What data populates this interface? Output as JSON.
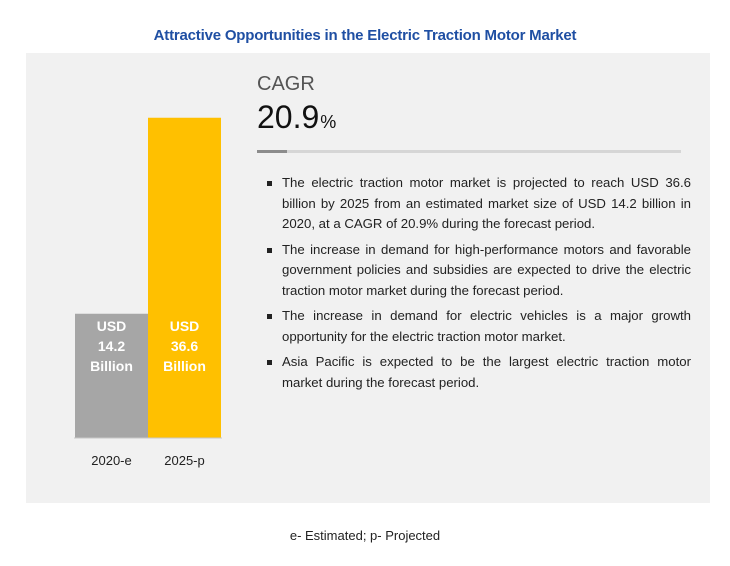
{
  "title": "Attractive Opportunities in the Electric Traction Motor Market",
  "cagr": {
    "label": "CAGR",
    "value": "20.9",
    "unit": "%"
  },
  "bullets": [
    "The electric traction motor market is projected to reach USD 36.6 billion by 2025 from an estimated market size of USD 14.2 billion in 2020, at a CAGR of 20.9% during the forecast period.",
    "The increase in demand for high-performance motors and favorable government policies and subsidies are expected to drive the electric traction motor market during the forecast period.",
    "The increase in demand for electric vehicles is a major growth opportunity for the electric traction motor market.",
    "Asia Pacific is expected to be the largest electric traction motor market during the forecast period."
  ],
  "footnote": "e- Estimated;  p- Projected",
  "chart_data": {
    "type": "bar",
    "categories": [
      "2020-e",
      "2025-p"
    ],
    "values": [
      14.2,
      36.6
    ],
    "data_labels": [
      [
        "USD",
        "14.2",
        "Billion"
      ],
      [
        "USD",
        "36.6",
        "Billion"
      ]
    ],
    "colors": [
      "#a6a6a6",
      "#ffc000"
    ],
    "grid": false,
    "ylim": [
      0,
      44
    ]
  }
}
